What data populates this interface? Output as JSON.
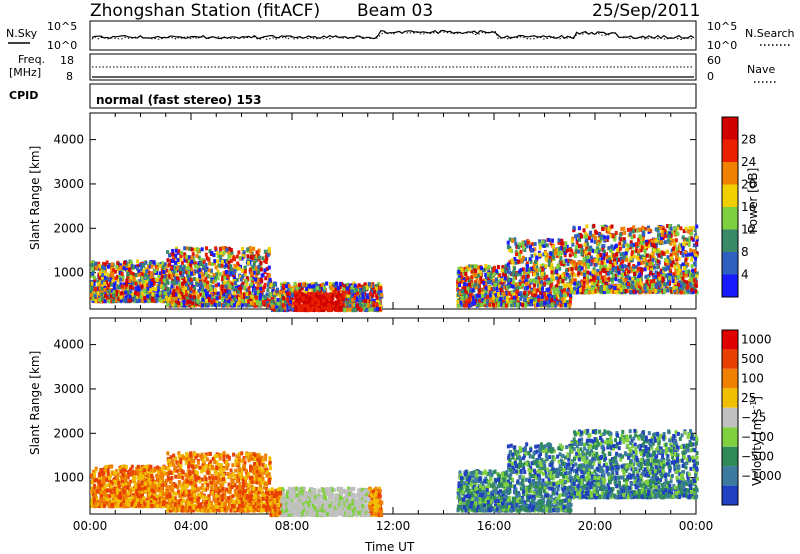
{
  "header": {
    "station": "Zhongshan Station (fitACF)",
    "beam": "Beam 03",
    "date": "25/Sep/2011"
  },
  "strip_labels": {
    "nsky": "N.Sky",
    "nsearch": "N.Search",
    "freq_1": "Freq.",
    "freq_2": "[MHz]",
    "nave": "Nave",
    "cpid": "CPID",
    "program": "normal (fast stereo) 153",
    "noise_top_left": "10^5",
    "noise_bot_left": "10^0",
    "noise_top_right": "10^5",
    "noise_bot_right": "10^0",
    "freq_top": "18",
    "freq_bot": "8",
    "nave_top": "60",
    "nave_bot": "0"
  },
  "chart_data": [
    {
      "type": "heatmap",
      "name": "power",
      "ylabel": "Slant Range [km]",
      "xlabel": "Time UT",
      "x_ticks": [
        "00:00",
        "04:00",
        "08:00",
        "12:00",
        "16:00",
        "20:00",
        "00:00"
      ],
      "y_ticks": [
        "1000",
        "2000",
        "3000",
        "4000"
      ],
      "ylim": [
        180,
        4600
      ],
      "colorbar": {
        "label": "Power [dB]",
        "tick_labels": [
          "4",
          "8",
          "12",
          "16",
          "20",
          "24",
          "28"
        ],
        "colors": [
          "#1a1aff",
          "#2f5fbf",
          "#3a8a6a",
          "#7fd040",
          "#f0d000",
          "#f08000",
          "#e82000",
          "#d00000"
        ]
      },
      "scatter_regions": [
        {
          "t0": 0.0,
          "t1": 3.0,
          "r0": 400,
          "r1": 1300
        },
        {
          "t0": 3.0,
          "t1": 7.1,
          "r0": 300,
          "r1": 1600
        },
        {
          "t0": 7.1,
          "t1": 11.5,
          "r0": 200,
          "r1": 800
        },
        {
          "t0": 14.5,
          "t1": 16.5,
          "r0": 300,
          "r1": 1200
        },
        {
          "t0": 16.5,
          "t1": 19.0,
          "r0": 300,
          "r1": 1800
        },
        {
          "t0": 19.0,
          "t1": 24.0,
          "r0": 600,
          "r1": 2100
        }
      ]
    },
    {
      "type": "heatmap",
      "name": "velocity",
      "ylabel": "Slant Range [km]",
      "xlabel": "Time UT",
      "x_ticks": [
        "00:00",
        "04:00",
        "08:00",
        "12:00",
        "16:00",
        "20:00",
        "00:00"
      ],
      "y_ticks": [
        "1000",
        "2000",
        "3000",
        "4000"
      ],
      "ylim": [
        180,
        4600
      ],
      "colorbar": {
        "label_main": "Velocity [m s",
        "label_exp": "-1",
        "label_close": "]",
        "tick_labels": [
          "1000",
          "500",
          "100",
          "25",
          "−25",
          "−100",
          "−500",
          "−1000"
        ],
        "colors": [
          "#2040c0",
          "#3c7aa0",
          "#2f8a5a",
          "#80d040",
          "#c0c0c0",
          "#f0c000",
          "#f08000",
          "#e84000",
          "#e00000"
        ]
      },
      "scatter_regions": [
        {
          "t0": 0.0,
          "t1": 3.0,
          "r0": 400,
          "r1": 1300
        },
        {
          "t0": 3.0,
          "t1": 7.1,
          "r0": 300,
          "r1": 1600
        },
        {
          "t0": 7.1,
          "t1": 11.5,
          "r0": 200,
          "r1": 800
        },
        {
          "t0": 14.5,
          "t1": 16.5,
          "r0": 300,
          "r1": 1200
        },
        {
          "t0": 16.5,
          "t1": 19.0,
          "r0": 300,
          "r1": 1800
        },
        {
          "t0": 19.0,
          "t1": 24.0,
          "r0": 600,
          "r1": 2100
        }
      ]
    }
  ]
}
